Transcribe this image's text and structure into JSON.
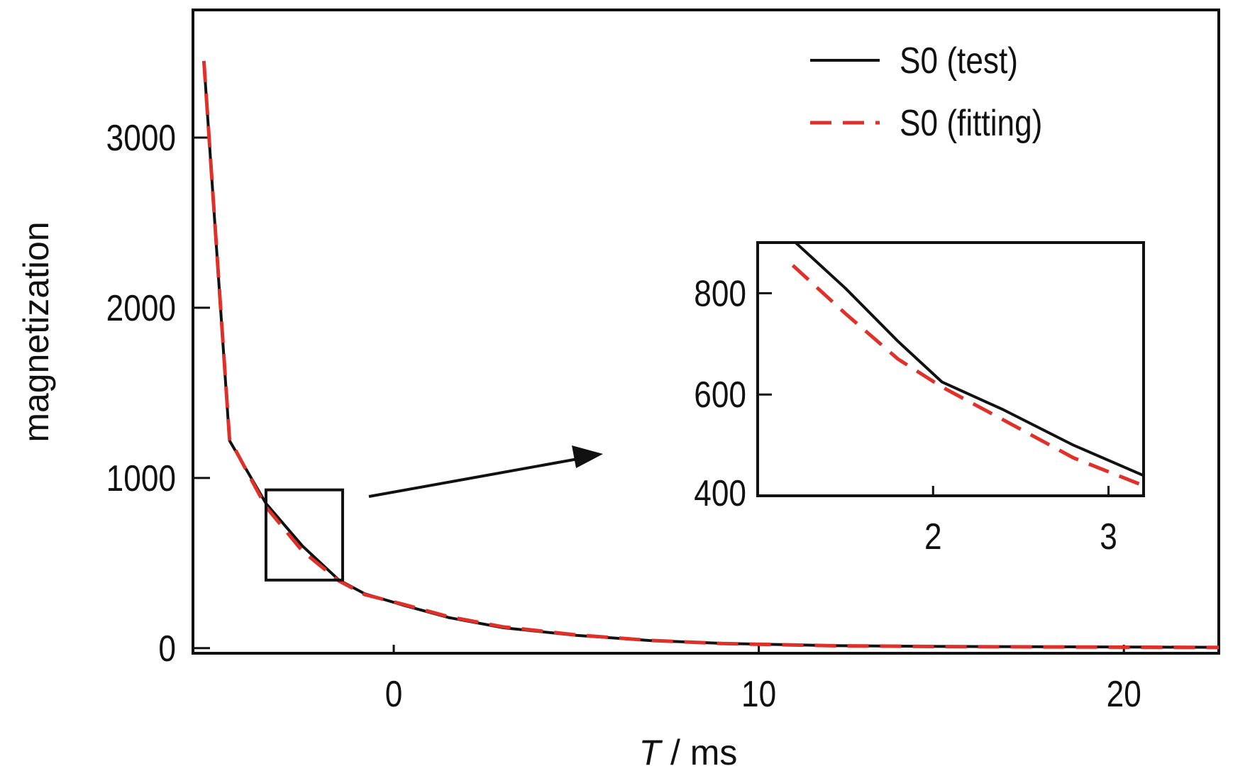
{
  "chart_data": [
    {
      "type": "line",
      "xlabel": {
        "symbol": "T",
        "unit": " / ms"
      },
      "ylabel": "magnetization",
      "xlim": [
        -5.5,
        22.6
      ],
      "ylim": [
        -30,
        3750
      ],
      "xticks": [
        0,
        10,
        20
      ],
      "yticks": [
        0,
        1000,
        2000,
        3000
      ],
      "grid": false,
      "legend": {
        "placement": "top-right"
      },
      "series": [
        {
          "name": "S0 (test)",
          "color": "#111111",
          "dash": "solid",
          "x": [
            -5.2,
            -4.5,
            -3.5,
            -2.5,
            -1.5,
            -0.8,
            0.3,
            1.5,
            3,
            5,
            7,
            9,
            12,
            15,
            18,
            21,
            22.6
          ],
          "y": [
            3450,
            1220,
            850,
            600,
            400,
            320,
            250,
            180,
            120,
            75,
            45,
            28,
            15,
            10,
            8,
            6,
            5
          ]
        },
        {
          "name": "S0 (fitting)",
          "color": "#e0302a",
          "dash": "dashed",
          "x": [
            -5.2,
            -4.5,
            -3.5,
            -2.5,
            -1.5,
            -0.8,
            0.3,
            1.5,
            3,
            5,
            7,
            9,
            12,
            15,
            18,
            21,
            22.6
          ],
          "y": [
            3450,
            1230,
            830,
            570,
            395,
            315,
            255,
            185,
            125,
            78,
            46,
            27,
            14,
            9,
            7,
            5,
            4
          ]
        }
      ],
      "zoom_box": {
        "x_range": [
          -3.5,
          -1.4
        ],
        "y_range": [
          400,
          930
        ]
      },
      "inset": {
        "xlim": [
          1.0,
          3.2
        ],
        "ylim": [
          400,
          900
        ],
        "xticks": [
          2,
          3
        ],
        "yticks": [
          400,
          600,
          800
        ],
        "series": [
          {
            "name": "S0 (test)",
            "x": [
              1.2,
              1.5,
              1.8,
              2.05,
              2.4,
              2.8,
              3.2
            ],
            "y": [
              905,
              810,
              705,
              625,
              570,
              500,
              440
            ]
          },
          {
            "name": "S0 (fitting)",
            "x": [
              1.2,
              1.5,
              1.8,
              2.05,
              2.4,
              2.8,
              3.2
            ],
            "y": [
              855,
              760,
              670,
              615,
              550,
              475,
              420
            ]
          }
        ]
      }
    }
  ]
}
